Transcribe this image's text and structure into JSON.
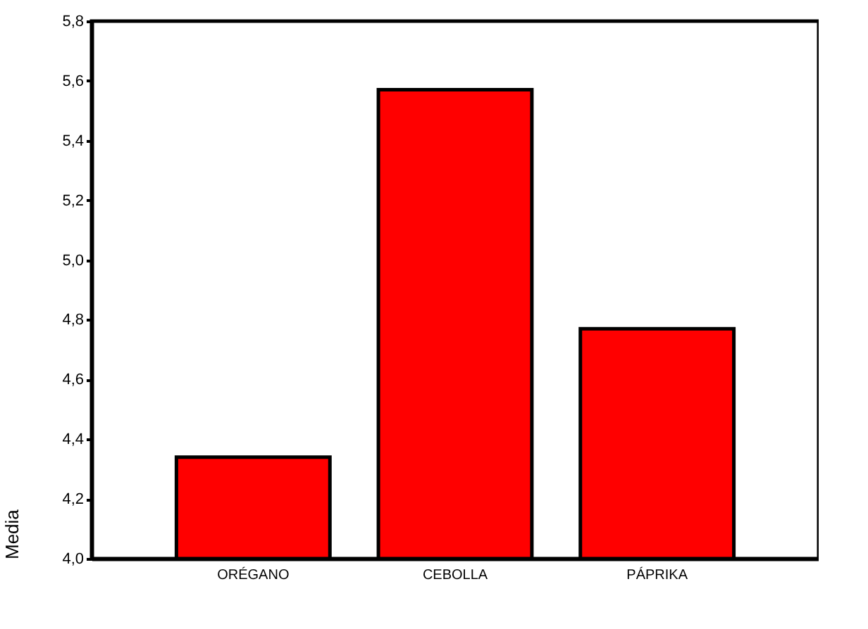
{
  "chart_data": {
    "type": "bar",
    "ylabel": "Media",
    "categories": [
      "ORÉGANO",
      "CEBOLLA",
      "PÁPRIKA"
    ],
    "values": [
      4.34,
      5.57,
      4.77
    ],
    "color": "#ff0000",
    "ylim": [
      4.0,
      5.8
    ],
    "yticks": [
      {
        "value": 4.0,
        "label": "4,0"
      },
      {
        "value": 4.2,
        "label": "4,2"
      },
      {
        "value": 4.4,
        "label": "4,4"
      },
      {
        "value": 4.6,
        "label": "4,6"
      },
      {
        "value": 4.8,
        "label": "4,8"
      },
      {
        "value": 5.0,
        "label": "5,0"
      },
      {
        "value": 5.2,
        "label": "5,2"
      },
      {
        "value": 5.4,
        "label": "5,4"
      },
      {
        "value": 5.6,
        "label": "5,6"
      },
      {
        "value": 5.8,
        "label": "5,8"
      }
    ],
    "grid": false
  }
}
